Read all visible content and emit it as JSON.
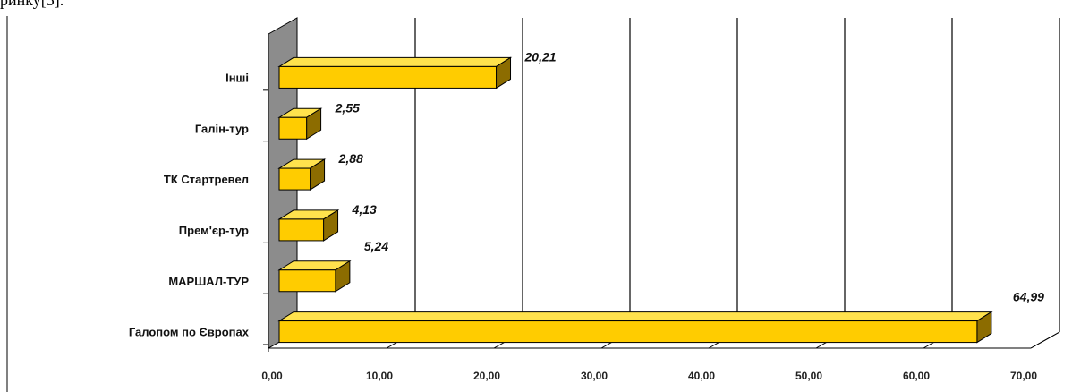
{
  "fragment_text": "ринку[5].",
  "chart_data": {
    "type": "bar",
    "orientation": "horizontal",
    "style": "3d",
    "categories": [
      "Інші",
      "Галін-тур",
      "ТК Стартревел",
      "Прем'єр-тур",
      "МАРШАЛ-ТУР",
      "Галопом по Європах"
    ],
    "values": [
      20.21,
      2.55,
      2.88,
      4.13,
      5.24,
      64.99
    ],
    "value_labels": [
      "20,21",
      "2,55",
      "2,88",
      "4,13",
      "5,24",
      "64,99"
    ],
    "xlim": [
      0,
      70
    ],
    "x_ticks": [
      "0,00",
      "10,00",
      "20,00",
      "30,00",
      "40,00",
      "50,00",
      "60,00",
      "70,00"
    ],
    "grid": "vertical",
    "colors": {
      "bar_front": "#FFCC00",
      "bar_top": "#FFE24D",
      "bar_side": "#8C6C00",
      "wall": "#8C8C8C"
    }
  }
}
